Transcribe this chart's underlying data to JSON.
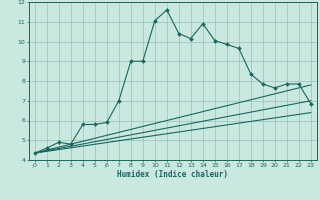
{
  "xlabel": "Humidex (Indice chaleur)",
  "xlim": [
    -0.5,
    23.5
  ],
  "ylim": [
    4,
    12
  ],
  "xticks": [
    0,
    1,
    2,
    3,
    4,
    5,
    6,
    7,
    8,
    9,
    10,
    11,
    12,
    13,
    14,
    15,
    16,
    17,
    18,
    19,
    20,
    21,
    22,
    23
  ],
  "yticks": [
    4,
    5,
    6,
    7,
    8,
    9,
    10,
    11,
    12
  ],
  "bg_color": "#c8e8e0",
  "grid_color": "#a0c8c0",
  "line_color": "#1a6660",
  "curve1_x": [
    0,
    1,
    2,
    3,
    4,
    5,
    6,
    7,
    8,
    9,
    10,
    11,
    12,
    13,
    14,
    15,
    16,
    17,
    18,
    19,
    20,
    21,
    22,
    23
  ],
  "curve1_y": [
    4.35,
    4.6,
    4.9,
    4.8,
    5.8,
    5.8,
    5.9,
    7.0,
    9.0,
    9.0,
    11.05,
    11.6,
    10.4,
    10.15,
    10.9,
    10.05,
    9.85,
    9.65,
    8.35,
    7.85,
    7.65,
    7.85,
    7.85,
    6.85
  ],
  "line2_x": [
    0,
    23
  ],
  "line2_y": [
    4.35,
    7.8
  ],
  "line3_x": [
    0,
    23
  ],
  "line3_y": [
    4.35,
    7.0
  ],
  "line4_x": [
    0,
    23
  ],
  "line4_y": [
    4.35,
    6.4
  ]
}
